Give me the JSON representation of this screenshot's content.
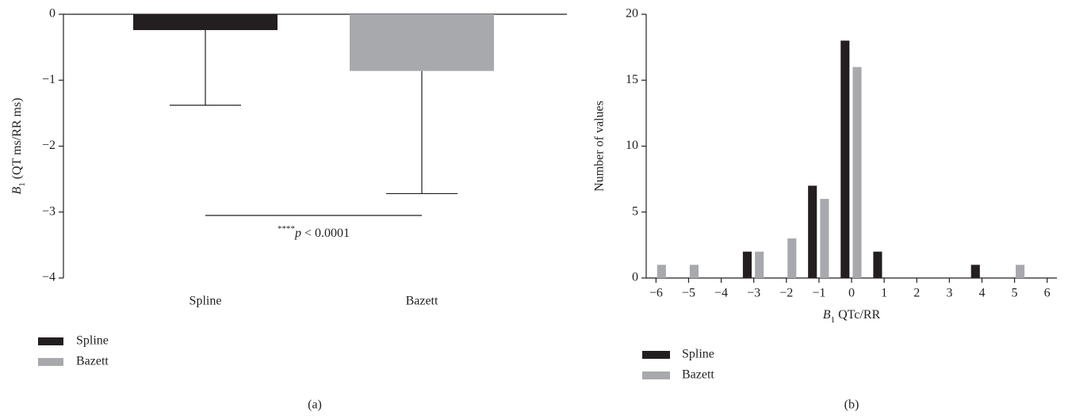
{
  "chart_data": [
    {
      "type": "bar_error",
      "categories": [
        "Spline",
        "Bazett"
      ],
      "values": [
        -0.24,
        -0.86
      ],
      "errors": [
        1.14,
        1.86
      ],
      "colors": [
        "#231f20",
        "#a7a9ac"
      ],
      "ylim": [
        -4,
        0
      ],
      "yticks": [
        {
          "value": -4,
          "label": "−4"
        },
        {
          "value": -3,
          "label": "−3"
        },
        {
          "value": -2,
          "label": "−2"
        },
        {
          "value": -1,
          "label": "−1"
        },
        0
      ],
      "ylabel": [
        "B",
        "1",
        " (QT ms/RR ms)"
      ],
      "annotation": [
        "****",
        "p",
        " < 0.0001"
      ],
      "caption": "(a)"
    },
    {
      "type": "grouped_bar",
      "x": [
        -6,
        -5,
        -4,
        -3,
        -2,
        -1,
        0,
        1,
        2,
        3,
        4,
        5,
        6
      ],
      "series": [
        {
          "name": "Spline",
          "color": "#231f20",
          "values": [
            0,
            0,
            0,
            2,
            0,
            7,
            18,
            2,
            0,
            0,
            1,
            0,
            0
          ]
        },
        {
          "name": "Bazett",
          "color": "#a7a9ac",
          "values": [
            1,
            1,
            0,
            2,
            3,
            6,
            16,
            0,
            0,
            0,
            0,
            1,
            0
          ]
        }
      ],
      "xlim": [
        -6.3,
        6.3
      ],
      "xticks": [
        {
          "value": -6,
          "label": "−6"
        },
        {
          "value": -5,
          "label": "−5"
        },
        {
          "value": -4,
          "label": "−4"
        },
        {
          "value": -3,
          "label": "−3"
        },
        {
          "value": -2,
          "label": "−2"
        },
        {
          "value": -1,
          "label": "−1"
        },
        0,
        1,
        2,
        3,
        4,
        5,
        6
      ],
      "ylim": [
        0,
        20
      ],
      "yticks": [
        0,
        5,
        10,
        15,
        20
      ],
      "xlabel": [
        "B",
        "1",
        " QTc/RR"
      ],
      "ylabel": "Number of values",
      "caption": "(b)"
    }
  ]
}
